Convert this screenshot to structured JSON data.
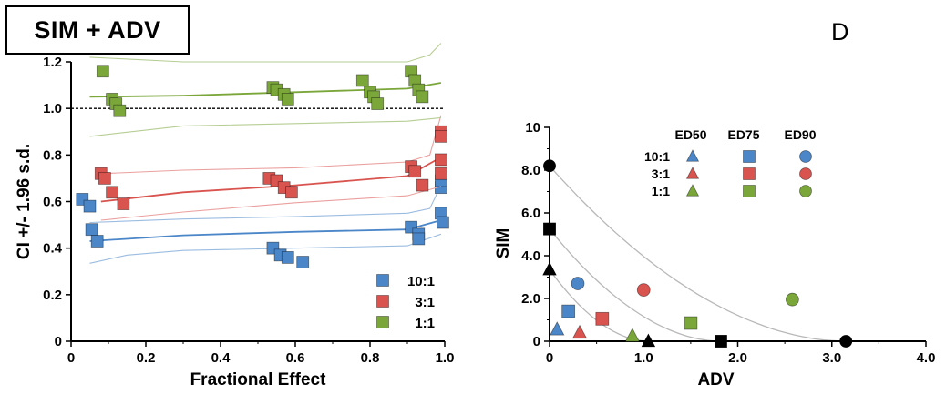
{
  "title": "SIM  + ADV",
  "panel_label": "D",
  "chart_data": [
    {
      "type": "scatter",
      "xlabel": "Fractional Effect",
      "ylabel": "CI +/- 1.96 s.d.",
      "xlim": [
        0,
        1.0
      ],
      "ylim": [
        0,
        1.2
      ],
      "xticks": [
        "0",
        "0.2",
        "0.4",
        "0.6",
        "0.8",
        "1.0"
      ],
      "yticks": [
        "0",
        "0.2",
        "0.4",
        "0.6",
        "0.8",
        "1.0",
        "1.2"
      ],
      "reference_line_y": 1.0,
      "legend_position": "bottom-right",
      "series": [
        {
          "name": "10:1",
          "color": "#4a86c8",
          "marker": "square",
          "points": [
            [
              0.03,
              0.61
            ],
            [
              0.05,
              0.58
            ],
            [
              0.055,
              0.48
            ],
            [
              0.07,
              0.43
            ],
            [
              0.54,
              0.4
            ],
            [
              0.56,
              0.37
            ],
            [
              0.58,
              0.36
            ],
            [
              0.62,
              0.34
            ],
            [
              0.91,
              0.49
            ],
            [
              0.93,
              0.46
            ],
            [
              0.93,
              0.44
            ],
            [
              0.99,
              0.66
            ],
            [
              0.99,
              0.69
            ],
            [
              0.99,
              0.55
            ],
            [
              0.995,
              0.51
            ]
          ],
          "fit": [
            [
              0.05,
              0.43
            ],
            [
              0.3,
              0.455
            ],
            [
              0.6,
              0.47
            ],
            [
              0.9,
              0.48
            ],
            [
              0.99,
              0.52
            ]
          ],
          "ci_upper": [
            [
              0.05,
              0.51
            ],
            [
              0.3,
              0.525
            ],
            [
              0.6,
              0.535
            ],
            [
              0.9,
              0.55
            ],
            [
              0.96,
              0.57
            ],
            [
              0.99,
              0.67
            ]
          ],
          "ci_lower": [
            [
              0.05,
              0.335
            ],
            [
              0.15,
              0.37
            ],
            [
              0.3,
              0.39
            ],
            [
              0.6,
              0.4
            ],
            [
              0.9,
              0.41
            ],
            [
              0.99,
              0.46
            ]
          ]
        },
        {
          "name": "3:1",
          "color": "#d9534f",
          "marker": "square",
          "points": [
            [
              0.08,
              0.72
            ],
            [
              0.09,
              0.7
            ],
            [
              0.11,
              0.64
            ],
            [
              0.14,
              0.59
            ],
            [
              0.53,
              0.7
            ],
            [
              0.55,
              0.69
            ],
            [
              0.57,
              0.66
            ],
            [
              0.59,
              0.64
            ],
            [
              0.91,
              0.75
            ],
            [
              0.92,
              0.73
            ],
            [
              0.94,
              0.67
            ],
            [
              0.99,
              0.9
            ],
            [
              0.99,
              0.88
            ],
            [
              0.99,
              0.78
            ],
            [
              0.99,
              0.72
            ]
          ],
          "fit": [
            [
              0.08,
              0.6
            ],
            [
              0.3,
              0.64
            ],
            [
              0.6,
              0.67
            ],
            [
              0.9,
              0.71
            ],
            [
              0.99,
              0.79
            ]
          ],
          "ci_upper": [
            [
              0.08,
              0.72
            ],
            [
              0.3,
              0.735
            ],
            [
              0.6,
              0.745
            ],
            [
              0.9,
              0.77
            ],
            [
              0.96,
              0.8
            ],
            [
              0.99,
              0.97
            ]
          ],
          "ci_lower": [
            [
              0.08,
              0.52
            ],
            [
              0.3,
              0.555
            ],
            [
              0.6,
              0.595
            ],
            [
              0.9,
              0.625
            ],
            [
              0.99,
              0.665
            ]
          ]
        },
        {
          "name": "1:1",
          "color": "#7aa63a",
          "marker": "square",
          "points": [
            [
              0.085,
              1.16
            ],
            [
              0.11,
              1.04
            ],
            [
              0.12,
              1.02
            ],
            [
              0.13,
              0.99
            ],
            [
              0.54,
              1.09
            ],
            [
              0.55,
              1.08
            ],
            [
              0.57,
              1.06
            ],
            [
              0.58,
              1.04
            ],
            [
              0.78,
              1.12
            ],
            [
              0.8,
              1.07
            ],
            [
              0.81,
              1.05
            ],
            [
              0.82,
              1.02
            ],
            [
              0.91,
              1.16
            ],
            [
              0.92,
              1.12
            ],
            [
              0.93,
              1.08
            ],
            [
              0.94,
              1.05
            ]
          ],
          "fit": [
            [
              0.05,
              1.05
            ],
            [
              0.3,
              1.055
            ],
            [
              0.6,
              1.07
            ],
            [
              0.9,
              1.085
            ],
            [
              0.99,
              1.11
            ]
          ],
          "ci_upper": [
            [
              0.05,
              1.22
            ],
            [
              0.3,
              1.2
            ],
            [
              0.6,
              1.2
            ],
            [
              0.9,
              1.2
            ],
            [
              0.96,
              1.23
            ],
            [
              0.99,
              1.28
            ]
          ],
          "ci_lower": [
            [
              0.05,
              0.88
            ],
            [
              0.3,
              0.925
            ],
            [
              0.6,
              0.935
            ],
            [
              0.9,
              0.945
            ],
            [
              0.99,
              0.96
            ]
          ]
        }
      ]
    },
    {
      "type": "scatter",
      "xlabel": "ADV",
      "ylabel": "SIM",
      "xlim": [
        0,
        4.0
      ],
      "ylim": [
        0,
        10
      ],
      "xticks": [
        "0",
        "1.0",
        "2.0",
        "3.0",
        "4.0"
      ],
      "yticks": [
        "0",
        "2.0",
        "4.0",
        "6.0",
        "8.0",
        "10"
      ],
      "legend_header": [
        "ED50",
        "ED75",
        "ED90"
      ],
      "legend_rows": [
        "10:1",
        "3:1",
        "1:1"
      ],
      "legend_position": "top-right",
      "isoboles": [
        {
          "x_intercept": 1.05,
          "y_intercept": 3.35
        },
        {
          "x_intercept": 1.82,
          "y_intercept": 5.25
        },
        {
          "x_intercept": 3.15,
          "y_intercept": 8.2
        }
      ],
      "axis_points": [
        {
          "marker": "triangle",
          "x": 0,
          "y": 3.35
        },
        {
          "marker": "triangle",
          "x": 1.05,
          "y": 0
        },
        {
          "marker": "square",
          "x": 0,
          "y": 5.25
        },
        {
          "marker": "square",
          "x": 1.82,
          "y": 0
        },
        {
          "marker": "circle",
          "x": 0,
          "y": 8.2
        },
        {
          "marker": "circle",
          "x": 3.15,
          "y": 0
        }
      ],
      "points": [
        {
          "ratio": "10:1",
          "level": "ED50",
          "marker": "triangle",
          "color": "#4a86c8",
          "x": 0.08,
          "y": 0.55
        },
        {
          "ratio": "10:1",
          "level": "ED75",
          "marker": "square",
          "color": "#4a86c8",
          "x": 0.2,
          "y": 1.4
        },
        {
          "ratio": "10:1",
          "level": "ED90",
          "marker": "circle",
          "color": "#4a86c8",
          "x": 0.3,
          "y": 2.7
        },
        {
          "ratio": "3:1",
          "level": "ED50",
          "marker": "triangle",
          "color": "#d9534f",
          "x": 0.32,
          "y": 0.4
        },
        {
          "ratio": "3:1",
          "level": "ED75",
          "marker": "square",
          "color": "#d9534f",
          "x": 0.56,
          "y": 1.05
        },
        {
          "ratio": "3:1",
          "level": "ED90",
          "marker": "circle",
          "color": "#d9534f",
          "x": 1.0,
          "y": 2.4
        },
        {
          "ratio": "1:1",
          "level": "ED50",
          "marker": "triangle",
          "color": "#7aa63a",
          "x": 0.88,
          "y": 0.25
        },
        {
          "ratio": "1:1",
          "level": "ED75",
          "marker": "square",
          "color": "#7aa63a",
          "x": 1.5,
          "y": 0.85
        },
        {
          "ratio": "1:1",
          "level": "ED90",
          "marker": "circle",
          "color": "#7aa63a",
          "x": 2.58,
          "y": 1.95
        }
      ]
    }
  ]
}
